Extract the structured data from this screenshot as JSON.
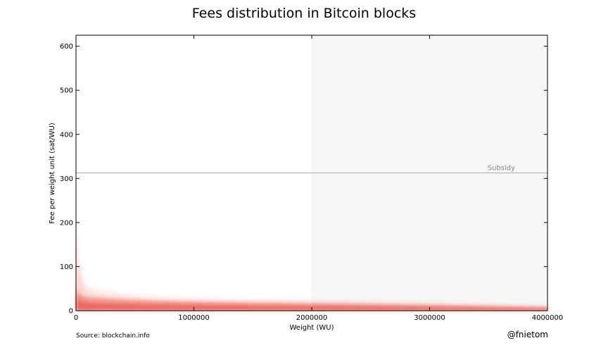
{
  "chart_data": {
    "type": "area",
    "title": "Fees distribution in Bitcoin blocks",
    "xlabel": "Weight (WU)",
    "ylabel": "Fee per weight unit (sat/WU)",
    "xlim": [
      0,
      4000000
    ],
    "ylim": [
      0,
      625
    ],
    "x_ticks": [
      0,
      1000000,
      2000000,
      3000000,
      4000000
    ],
    "x_tick_labels": [
      "0",
      "1000000",
      "2000000",
      "3000000",
      "4000000"
    ],
    "y_ticks": [
      0,
      100,
      200,
      300,
      400,
      500,
      600
    ],
    "y_tick_labels": [
      "0",
      "100",
      "200",
      "300",
      "400",
      "500",
      "600"
    ],
    "grid": false,
    "shaded_region": {
      "x_start": 2000000,
      "x_end": 4000000,
      "color": "#f6f6f6"
    },
    "reference_line": {
      "label": "Subsidy",
      "y": 312.5,
      "color": "#aaaaaa"
    },
    "series_color": "#e8493c",
    "distribution_profile": {
      "x": [
        0,
        10000,
        30000,
        60000,
        100000,
        200000,
        400000,
        700000,
        1000000,
        1500000,
        2000000,
        2500000,
        3000000,
        3500000,
        4000000
      ],
      "upper_fee": [
        300,
        170,
        110,
        75,
        55,
        48,
        40,
        33,
        30,
        27,
        25,
        23,
        20,
        16,
        12
      ],
      "core_fee": [
        60,
        45,
        38,
        33,
        30,
        28,
        25,
        22,
        20,
        18,
        16,
        14,
        12,
        10,
        8
      ]
    },
    "annotations": {
      "source": "Source: blockchain.info",
      "credit": "@fnietom"
    }
  }
}
